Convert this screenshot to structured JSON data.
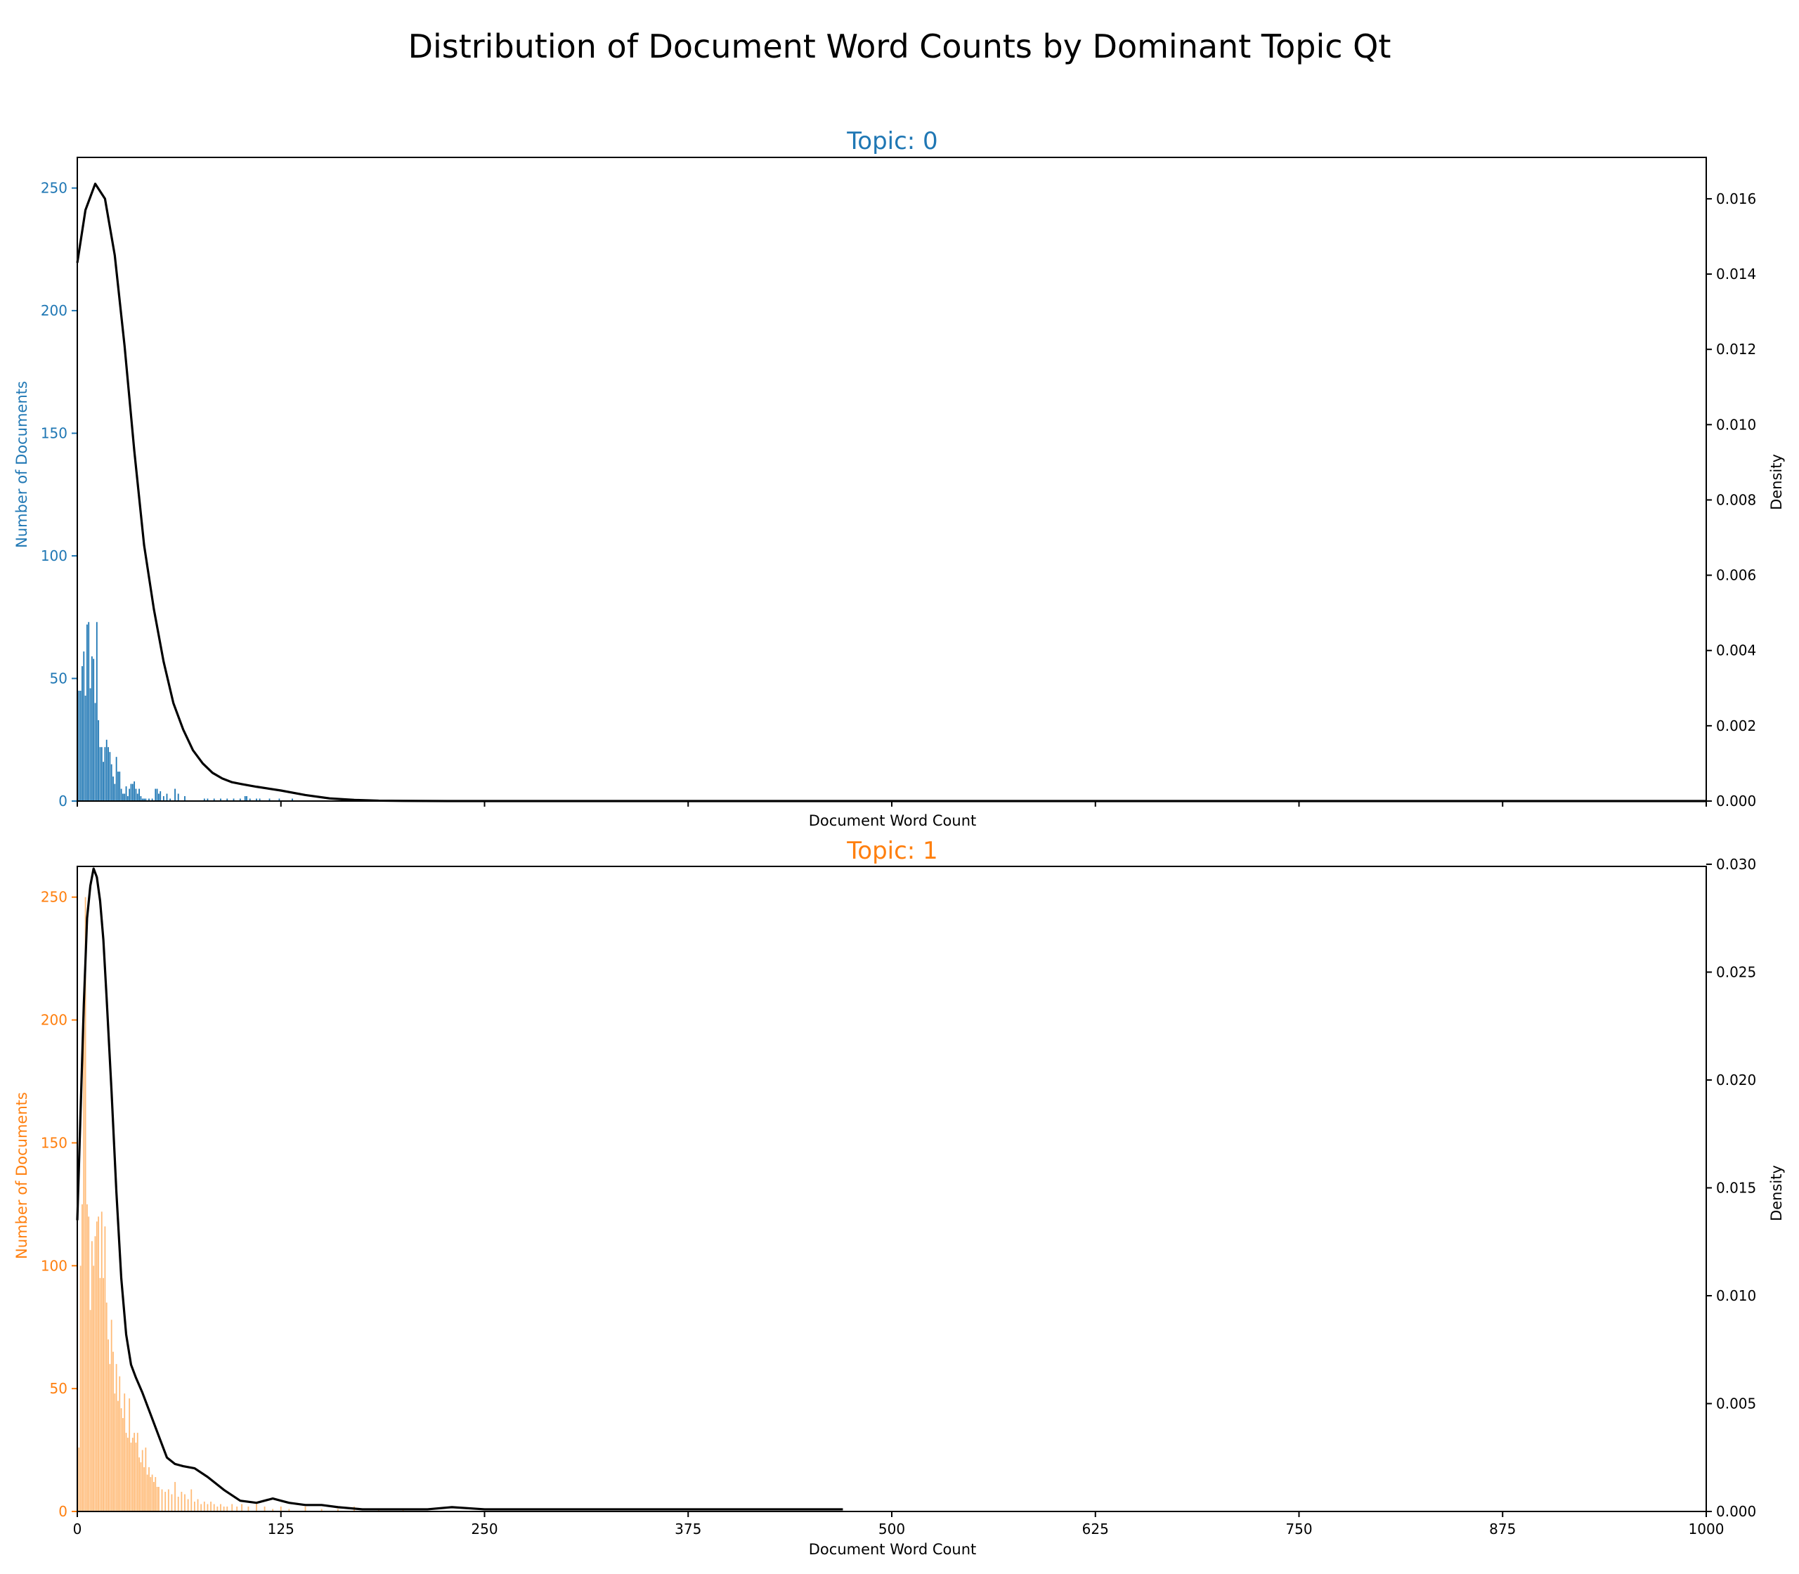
{
  "figure": {
    "suptitle": "Distribution of Document Word Counts by Dominant Topic Qt"
  },
  "chart_data": [
    {
      "type": "bar",
      "title": "Topic: 0",
      "title_color": "#1f77b4",
      "bar_color": "#1f77b4",
      "density_color": "#000000",
      "xlabel": "Document Word Count",
      "ylabel": "Number of Documents",
      "y2label": "Density",
      "xlim": [
        0,
        1000
      ],
      "ylim": [
        0,
        262.5
      ],
      "y2lim": [
        0,
        0.0171
      ],
      "x_ticks": [
        0,
        125,
        250,
        375,
        500,
        625,
        750,
        875,
        1000
      ],
      "x_tick_labels_shown": false,
      "y_ticks": [
        0,
        50,
        100,
        150,
        200,
        250
      ],
      "y2_ticks": [
        "0.000",
        "0.002",
        "0.004",
        "0.006",
        "0.008",
        "0.010",
        "0.012",
        "0.014",
        "0.016"
      ],
      "bins": {
        "x": [
          1,
          2,
          3,
          4,
          5,
          6,
          7,
          8,
          9,
          10,
          11,
          12,
          13,
          14,
          15,
          16,
          17,
          18,
          19,
          20,
          21,
          22,
          23,
          24,
          25,
          26,
          27,
          28,
          29,
          30,
          31,
          32,
          33,
          34,
          35,
          36,
          37,
          38,
          39,
          40,
          41,
          42,
          44,
          46,
          48,
          49,
          50,
          51,
          53,
          55,
          57,
          60,
          62,
          66,
          78,
          80,
          84,
          88,
          92,
          96,
          100,
          103,
          104,
          106,
          110,
          112,
          118,
          124,
          132
        ],
        "values": [
          45,
          45,
          55,
          61,
          43,
          72,
          73,
          46,
          59,
          58,
          40,
          73,
          33,
          22,
          22,
          16,
          22,
          25,
          22,
          20,
          15,
          10,
          7,
          18,
          12,
          12,
          5,
          3,
          3,
          6,
          2,
          5,
          7,
          7,
          8,
          5,
          3,
          5,
          2,
          1,
          1,
          1,
          1,
          1,
          5,
          5,
          3,
          4,
          2,
          3,
          1,
          5,
          3,
          2,
          1,
          1,
          1,
          1,
          1,
          1,
          1,
          2,
          2,
          1,
          1,
          1,
          1,
          1,
          1
        ]
      },
      "density": {
        "x": [
          0,
          5,
          11,
          17,
          23,
          29,
          35,
          41,
          47,
          53,
          59,
          65,
          71,
          77,
          83,
          89,
          95,
          101,
          110,
          125,
          140,
          155,
          170,
          185,
          200,
          230,
          260,
          300,
          350,
          400,
          1000
        ],
        "y": [
          0.0143,
          0.0157,
          0.0164,
          0.016,
          0.0145,
          0.0121,
          0.0093,
          0.0068,
          0.0051,
          0.0037,
          0.0026,
          0.0019,
          0.00135,
          0.001,
          0.00075,
          0.0006,
          0.0005,
          0.00045,
          0.00038,
          0.00028,
          0.00016,
          7e-05,
          3e-05,
          1e-05,
          5e-06,
          0.0,
          0.0,
          0.0,
          0.0,
          0.0,
          0.0
        ]
      }
    },
    {
      "type": "bar",
      "title": "Topic: 1",
      "title_color": "#ff7f0e",
      "bar_color": "#ffbb78",
      "axis_text_color": "#ff7f0e",
      "density_color": "#000000",
      "xlabel": "Document Word Count",
      "ylabel": "Number of Documents",
      "y2label": "Density",
      "xlim": [
        0,
        1000
      ],
      "ylim": [
        0,
        262.5
      ],
      "y2lim": [
        0,
        0.0299
      ],
      "x_ticks": [
        0,
        125,
        250,
        375,
        500,
        625,
        750,
        875,
        1000
      ],
      "x_tick_labels_shown": true,
      "y_ticks": [
        0,
        50,
        100,
        150,
        200,
        250
      ],
      "y2_ticks": [
        "0.000",
        "0.005",
        "0.010",
        "0.015",
        "0.020",
        "0.025",
        "0.030"
      ],
      "bins": {
        "x": [
          1,
          2,
          3,
          4,
          5,
          6,
          7,
          8,
          9,
          10,
          11,
          12,
          13,
          14,
          15,
          16,
          17,
          18,
          19,
          20,
          21,
          22,
          23,
          24,
          25,
          26,
          27,
          28,
          29,
          30,
          31,
          32,
          33,
          34,
          35,
          36,
          37,
          38,
          39,
          40,
          41,
          42,
          43,
          44,
          45,
          46,
          47,
          48,
          49,
          50,
          52,
          54,
          56,
          58,
          60,
          62,
          64,
          66,
          68,
          70,
          72,
          74,
          76,
          78,
          80,
          82,
          84,
          86,
          88,
          90,
          92,
          95,
          98,
          101,
          105,
          110,
          115,
          120,
          125,
          130,
          140,
          150,
          160,
          170,
          185,
          200
        ],
        "values": [
          26,
          100,
          125,
          200,
          250,
          125,
          120,
          82,
          110,
          100,
          112,
          118,
          120,
          95,
          122,
          95,
          116,
          85,
          70,
          60,
          78,
          65,
          48,
          60,
          45,
          55,
          42,
          38,
          48,
          32,
          30,
          46,
          28,
          30,
          32,
          28,
          32,
          22,
          20,
          25,
          18,
          26,
          15,
          18,
          14,
          15,
          12,
          14,
          10,
          10,
          9,
          8,
          9,
          7,
          12,
          6,
          8,
          7,
          5,
          9,
          4,
          5,
          3,
          4,
          3,
          4,
          3,
          2,
          3,
          2,
          2,
          3,
          2,
          3,
          2,
          3,
          2,
          1,
          2,
          1,
          2,
          1,
          1,
          2,
          1,
          1
        ]
      },
      "density": {
        "x": [
          0,
          2,
          4,
          6,
          8,
          10,
          12,
          14,
          16,
          18,
          21,
          24,
          27,
          30,
          33,
          36,
          40,
          45,
          50,
          55,
          60,
          65,
          72,
          80,
          90,
          100,
          110,
          120,
          125,
          130,
          140,
          150,
          160,
          175,
          190,
          200,
          215,
          230,
          250,
          280,
          320,
          360,
          400,
          440,
          470
        ],
        "y": [
          0.0135,
          0.0185,
          0.0235,
          0.0275,
          0.029,
          0.0298,
          0.0294,
          0.0283,
          0.0265,
          0.0238,
          0.0195,
          0.0148,
          0.0108,
          0.0082,
          0.0068,
          0.0062,
          0.0055,
          0.0045,
          0.0035,
          0.0025,
          0.0022,
          0.0021,
          0.002,
          0.0016,
          0.001,
          0.0005,
          0.0004,
          0.0006,
          0.0005,
          0.0004,
          0.0003,
          0.0003,
          0.0002,
          0.0001,
          0.0001,
          0.0001,
          0.0001,
          0.0002,
          0.0001,
          0.0001,
          0.0001,
          0.0001,
          0.0001,
          0.0001,
          0.0001
        ]
      }
    }
  ]
}
